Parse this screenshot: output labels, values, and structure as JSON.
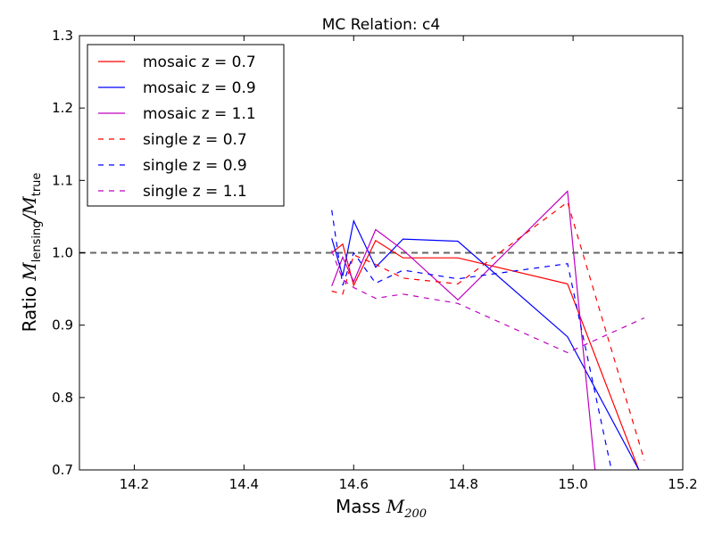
{
  "chart_data": {
    "type": "line",
    "title": "MC Relation: c4",
    "xlabel_prefix": "Mass",
    "xlabel_var": "M",
    "xlabel_sub": "200",
    "ylabel_prefix": "Ratio",
    "ylabel_num_var": "M",
    "ylabel_num_sub": "lensing",
    "ylabel_den_var": "M",
    "ylabel_den_sub": "true",
    "xlim": [
      14.1,
      15.2
    ],
    "ylim": [
      0.7,
      1.3
    ],
    "xticks": [
      "14.2",
      "14.4",
      "14.6",
      "14.8",
      "15.0",
      "15.2"
    ],
    "xtick_values": [
      14.2,
      14.4,
      14.6,
      14.8,
      15.0,
      15.2
    ],
    "yticks": [
      "0.7",
      "0.8",
      "0.9",
      "1.0",
      "1.1",
      "1.2",
      "1.3"
    ],
    "ytick_values": [
      0.7,
      0.8,
      0.9,
      1.0,
      1.1,
      1.2,
      1.3
    ],
    "reference_line": {
      "y": 1.0,
      "color": "#666666",
      "style": "dashed"
    },
    "legend_position": "upper-left",
    "grid": false,
    "series": [
      {
        "name": "mosaic z = 0.7",
        "color": "#ff0000",
        "style": "solid",
        "x": [
          14.56,
          14.58,
          14.6,
          14.64,
          14.69,
          14.79,
          14.99,
          15.12
        ],
        "y": [
          1.0,
          1.012,
          0.955,
          1.017,
          0.993,
          0.993,
          0.957,
          0.7
        ]
      },
      {
        "name": "mosaic z = 0.9",
        "color": "#0000ff",
        "style": "solid",
        "x": [
          14.56,
          14.58,
          14.6,
          14.64,
          14.69,
          14.79,
          14.99,
          15.12
        ],
        "y": [
          1.02,
          0.968,
          1.044,
          0.98,
          1.019,
          1.016,
          0.884,
          0.7
        ]
      },
      {
        "name": "mosaic z = 1.1",
        "color": "#bf00bf",
        "style": "solid",
        "x": [
          14.56,
          14.58,
          14.6,
          14.64,
          14.69,
          14.79,
          14.99,
          15.04
        ],
        "y": [
          0.954,
          0.994,
          0.96,
          1.032,
          1.004,
          0.935,
          1.085,
          0.7
        ]
      },
      {
        "name": "single z = 0.7",
        "color": "#ff0000",
        "style": "dashed",
        "x": [
          14.56,
          14.58,
          14.6,
          14.64,
          14.69,
          14.79,
          14.99,
          15.13
        ],
        "y": [
          0.947,
          0.943,
          0.997,
          0.984,
          0.965,
          0.957,
          1.07,
          0.713
        ]
      },
      {
        "name": "single z = 0.9",
        "color": "#0000ff",
        "style": "dashed",
        "x": [
          14.56,
          14.58,
          14.6,
          14.64,
          14.69,
          14.79,
          14.99,
          15.07
        ],
        "y": [
          1.059,
          0.955,
          1.0,
          0.958,
          0.976,
          0.964,
          0.985,
          0.7
        ]
      },
      {
        "name": "single z = 1.1",
        "color": "#bf00bf",
        "style": "dashed",
        "x": [
          14.56,
          14.58,
          14.6,
          14.64,
          14.69,
          14.79,
          14.99,
          15.13
        ],
        "y": [
          1.003,
          0.963,
          0.952,
          0.937,
          0.943,
          0.93,
          0.862,
          0.91
        ]
      }
    ]
  }
}
